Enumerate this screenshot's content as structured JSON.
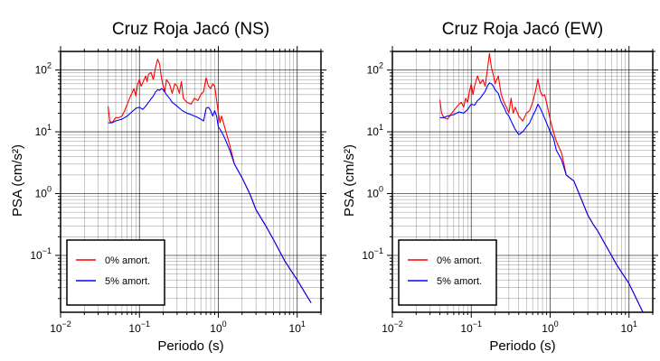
{
  "colors": {
    "background": "#ffffff",
    "axis": "#000000",
    "grid": "#000000",
    "undamped": "#ff0000",
    "damped": "#0000ff"
  },
  "chart_data": [
    {
      "type": "line",
      "title": "Cruz Roja Jacó (NS)",
      "xlabel": "Periodo (s)",
      "ylabel": "PSA (cm/s²)",
      "xscale": "log",
      "yscale": "log",
      "xlim": [
        0.01,
        20
      ],
      "ylim": [
        0.012,
        200
      ],
      "grid": true,
      "legend_position": "bottom-left",
      "xticks": [
        {
          "value": 0.01,
          "base": "10",
          "exp": "−2"
        },
        {
          "value": 0.1,
          "base": "10",
          "exp": "−1"
        },
        {
          "value": 1,
          "base": "10",
          "exp": "0"
        },
        {
          "value": 10,
          "base": "10",
          "exp": "1"
        }
      ],
      "yticks": [
        {
          "value": 0.1,
          "base": "10",
          "exp": "−1"
        },
        {
          "value": 1,
          "base": "10",
          "exp": "0"
        },
        {
          "value": 10,
          "base": "10",
          "exp": "1"
        },
        {
          "value": 100,
          "base": "10",
          "exp": "2"
        }
      ],
      "series": [
        {
          "name": "0% amort.",
          "color": "#ff0000",
          "points": [
            [
              0.04,
              26
            ],
            [
              0.042,
              15
            ],
            [
              0.045,
              14
            ],
            [
              0.05,
              17
            ],
            [
              0.055,
              17
            ],
            [
              0.06,
              18
            ],
            [
              0.065,
              22
            ],
            [
              0.07,
              28
            ],
            [
              0.075,
              35
            ],
            [
              0.08,
              42
            ],
            [
              0.085,
              50
            ],
            [
              0.09,
              38
            ],
            [
              0.095,
              60
            ],
            [
              0.1,
              70
            ],
            [
              0.105,
              55
            ],
            [
              0.11,
              62
            ],
            [
              0.12,
              80
            ],
            [
              0.125,
              65
            ],
            [
              0.13,
              85
            ],
            [
              0.14,
              92
            ],
            [
              0.15,
              70
            ],
            [
              0.16,
              110
            ],
            [
              0.17,
              150
            ],
            [
              0.18,
              125
            ],
            [
              0.19,
              75
            ],
            [
              0.2,
              55
            ],
            [
              0.21,
              45
            ],
            [
              0.22,
              70
            ],
            [
              0.24,
              60
            ],
            [
              0.26,
              42
            ],
            [
              0.28,
              60
            ],
            [
              0.3,
              55
            ],
            [
              0.32,
              42
            ],
            [
              0.34,
              65
            ],
            [
              0.36,
              35
            ],
            [
              0.4,
              30
            ],
            [
              0.45,
              28
            ],
            [
              0.5,
              35
            ],
            [
              0.55,
              32
            ],
            [
              0.6,
              40
            ],
            [
              0.65,
              45
            ],
            [
              0.7,
              75
            ],
            [
              0.75,
              55
            ],
            [
              0.8,
              50
            ],
            [
              0.85,
              60
            ],
            [
              0.9,
              55
            ],
            [
              1.0,
              20
            ],
            [
              1.05,
              14
            ],
            [
              1.1,
              18
            ],
            [
              1.2,
              12
            ],
            [
              1.4,
              6
            ],
            [
              1.6,
              3
            ],
            [
              2,
              1.8
            ],
            [
              2.5,
              1
            ],
            [
              3,
              0.55
            ],
            [
              4,
              0.3
            ],
            [
              5,
              0.18
            ],
            [
              7,
              0.08
            ],
            [
              10,
              0.04
            ],
            [
              15,
              0.017
            ]
          ]
        },
        {
          "name": "5% amort.",
          "color": "#0000ff",
          "points": [
            [
              0.04,
              14
            ],
            [
              0.045,
              14
            ],
            [
              0.05,
              15
            ],
            [
              0.06,
              16
            ],
            [
              0.07,
              18
            ],
            [
              0.08,
              21
            ],
            [
              0.09,
              24
            ],
            [
              0.1,
              25
            ],
            [
              0.11,
              23
            ],
            [
              0.12,
              26
            ],
            [
              0.13,
              30
            ],
            [
              0.14,
              34
            ],
            [
              0.15,
              38
            ],
            [
              0.16,
              44
            ],
            [
              0.17,
              48
            ],
            [
              0.18,
              47
            ],
            [
              0.19,
              50
            ],
            [
              0.2,
              48
            ],
            [
              0.22,
              40
            ],
            [
              0.24,
              35
            ],
            [
              0.26,
              30
            ],
            [
              0.28,
              28
            ],
            [
              0.3,
              26
            ],
            [
              0.35,
              22
            ],
            [
              0.4,
              20
            ],
            [
              0.45,
              19
            ],
            [
              0.5,
              18
            ],
            [
              0.55,
              17
            ],
            [
              0.6,
              16
            ],
            [
              0.65,
              15
            ],
            [
              0.7,
              24
            ],
            [
              0.75,
              25
            ],
            [
              0.8,
              22
            ],
            [
              0.85,
              18
            ],
            [
              0.9,
              22
            ],
            [
              0.95,
              18
            ],
            [
              1.0,
              12
            ],
            [
              1.05,
              11
            ],
            [
              1.1,
              10
            ],
            [
              1.2,
              8
            ],
            [
              1.4,
              5
            ],
            [
              1.6,
              3
            ],
            [
              2,
              1.8
            ],
            [
              2.5,
              1
            ],
            [
              3,
              0.55
            ],
            [
              4,
              0.3
            ],
            [
              5,
              0.18
            ],
            [
              7,
              0.08
            ],
            [
              10,
              0.04
            ],
            [
              15,
              0.017
            ]
          ]
        }
      ]
    },
    {
      "type": "line",
      "title": "Cruz Roja Jacó (EW)",
      "xlabel": "Periodo (s)",
      "ylabel": "PSA (cm/s²)",
      "xscale": "log",
      "yscale": "log",
      "xlim": [
        0.01,
        20
      ],
      "ylim": [
        0.012,
        200
      ],
      "grid": true,
      "legend_position": "bottom-left",
      "xticks": [
        {
          "value": 0.01,
          "base": "10",
          "exp": "−2"
        },
        {
          "value": 0.1,
          "base": "10",
          "exp": "−1"
        },
        {
          "value": 1,
          "base": "10",
          "exp": "0"
        },
        {
          "value": 10,
          "base": "10",
          "exp": "1"
        }
      ],
      "yticks": [
        {
          "value": 0.1,
          "base": "10",
          "exp": "−1"
        },
        {
          "value": 1,
          "base": "10",
          "exp": "0"
        },
        {
          "value": 10,
          "base": "10",
          "exp": "1"
        },
        {
          "value": 100,
          "base": "10",
          "exp": "2"
        }
      ],
      "series": [
        {
          "name": "0% amort.",
          "color": "#ff0000",
          "points": [
            [
              0.04,
              33
            ],
            [
              0.042,
              20
            ],
            [
              0.045,
              17
            ],
            [
              0.05,
              16
            ],
            [
              0.055,
              19
            ],
            [
              0.06,
              22
            ],
            [
              0.065,
              25
            ],
            [
              0.07,
              28
            ],
            [
              0.075,
              30
            ],
            [
              0.08,
              25
            ],
            [
              0.085,
              35
            ],
            [
              0.09,
              30
            ],
            [
              0.095,
              45
            ],
            [
              0.1,
              60
            ],
            [
              0.105,
              40
            ],
            [
              0.11,
              55
            ],
            [
              0.12,
              80
            ],
            [
              0.13,
              60
            ],
            [
              0.14,
              70
            ],
            [
              0.15,
              55
            ],
            [
              0.16,
              100
            ],
            [
              0.17,
              185
            ],
            [
              0.18,
              110
            ],
            [
              0.19,
              85
            ],
            [
              0.2,
              60
            ],
            [
              0.22,
              80
            ],
            [
              0.24,
              40
            ],
            [
              0.26,
              30
            ],
            [
              0.28,
              25
            ],
            [
              0.3,
              20
            ],
            [
              0.32,
              35
            ],
            [
              0.34,
              20
            ],
            [
              0.36,
              25
            ],
            [
              0.4,
              18
            ],
            [
              0.45,
              15
            ],
            [
              0.5,
              20
            ],
            [
              0.55,
              22
            ],
            [
              0.6,
              30
            ],
            [
              0.65,
              45
            ],
            [
              0.7,
              72
            ],
            [
              0.75,
              45
            ],
            [
              0.8,
              38
            ],
            [
              0.85,
              40
            ],
            [
              0.9,
              30
            ],
            [
              1.0,
              16
            ],
            [
              1.1,
              10
            ],
            [
              1.2,
              7
            ],
            [
              1.4,
              4.5
            ],
            [
              1.6,
              2
            ],
            [
              2,
              1.6
            ],
            [
              2.5,
              0.8
            ],
            [
              3,
              0.45
            ],
            [
              3.5,
              0.32
            ],
            [
              4,
              0.25
            ],
            [
              5,
              0.15
            ],
            [
              7,
              0.07
            ],
            [
              10,
              0.035
            ],
            [
              15,
              0.012
            ]
          ]
        },
        {
          "name": "5% amort.",
          "color": "#0000ff",
          "points": [
            [
              0.04,
              17
            ],
            [
              0.045,
              17
            ],
            [
              0.05,
              18
            ],
            [
              0.06,
              19
            ],
            [
              0.07,
              21
            ],
            [
              0.08,
              20
            ],
            [
              0.09,
              23
            ],
            [
              0.1,
              28
            ],
            [
              0.11,
              27
            ],
            [
              0.12,
              32
            ],
            [
              0.13,
              35
            ],
            [
              0.14,
              40
            ],
            [
              0.15,
              45
            ],
            [
              0.16,
              55
            ],
            [
              0.17,
              62
            ],
            [
              0.18,
              60
            ],
            [
              0.19,
              55
            ],
            [
              0.2,
              48
            ],
            [
              0.22,
              42
            ],
            [
              0.24,
              30
            ],
            [
              0.26,
              25
            ],
            [
              0.28,
              20
            ],
            [
              0.3,
              18
            ],
            [
              0.32,
              15
            ],
            [
              0.36,
              11
            ],
            [
              0.4,
              9
            ],
            [
              0.45,
              10
            ],
            [
              0.5,
              12
            ],
            [
              0.55,
              14
            ],
            [
              0.6,
              18
            ],
            [
              0.65,
              22
            ],
            [
              0.7,
              28
            ],
            [
              0.75,
              24
            ],
            [
              0.8,
              20
            ],
            [
              0.9,
              14
            ],
            [
              1.0,
              10
            ],
            [
              1.1,
              8
            ],
            [
              1.2,
              5
            ],
            [
              1.4,
              3.5
            ],
            [
              1.6,
              2
            ],
            [
              2,
              1.6
            ],
            [
              2.5,
              0.8
            ],
            [
              3,
              0.45
            ],
            [
              3.5,
              0.32
            ],
            [
              4,
              0.25
            ],
            [
              5,
              0.15
            ],
            [
              7,
              0.07
            ],
            [
              10,
              0.035
            ],
            [
              15,
              0.012
            ]
          ]
        }
      ]
    }
  ]
}
